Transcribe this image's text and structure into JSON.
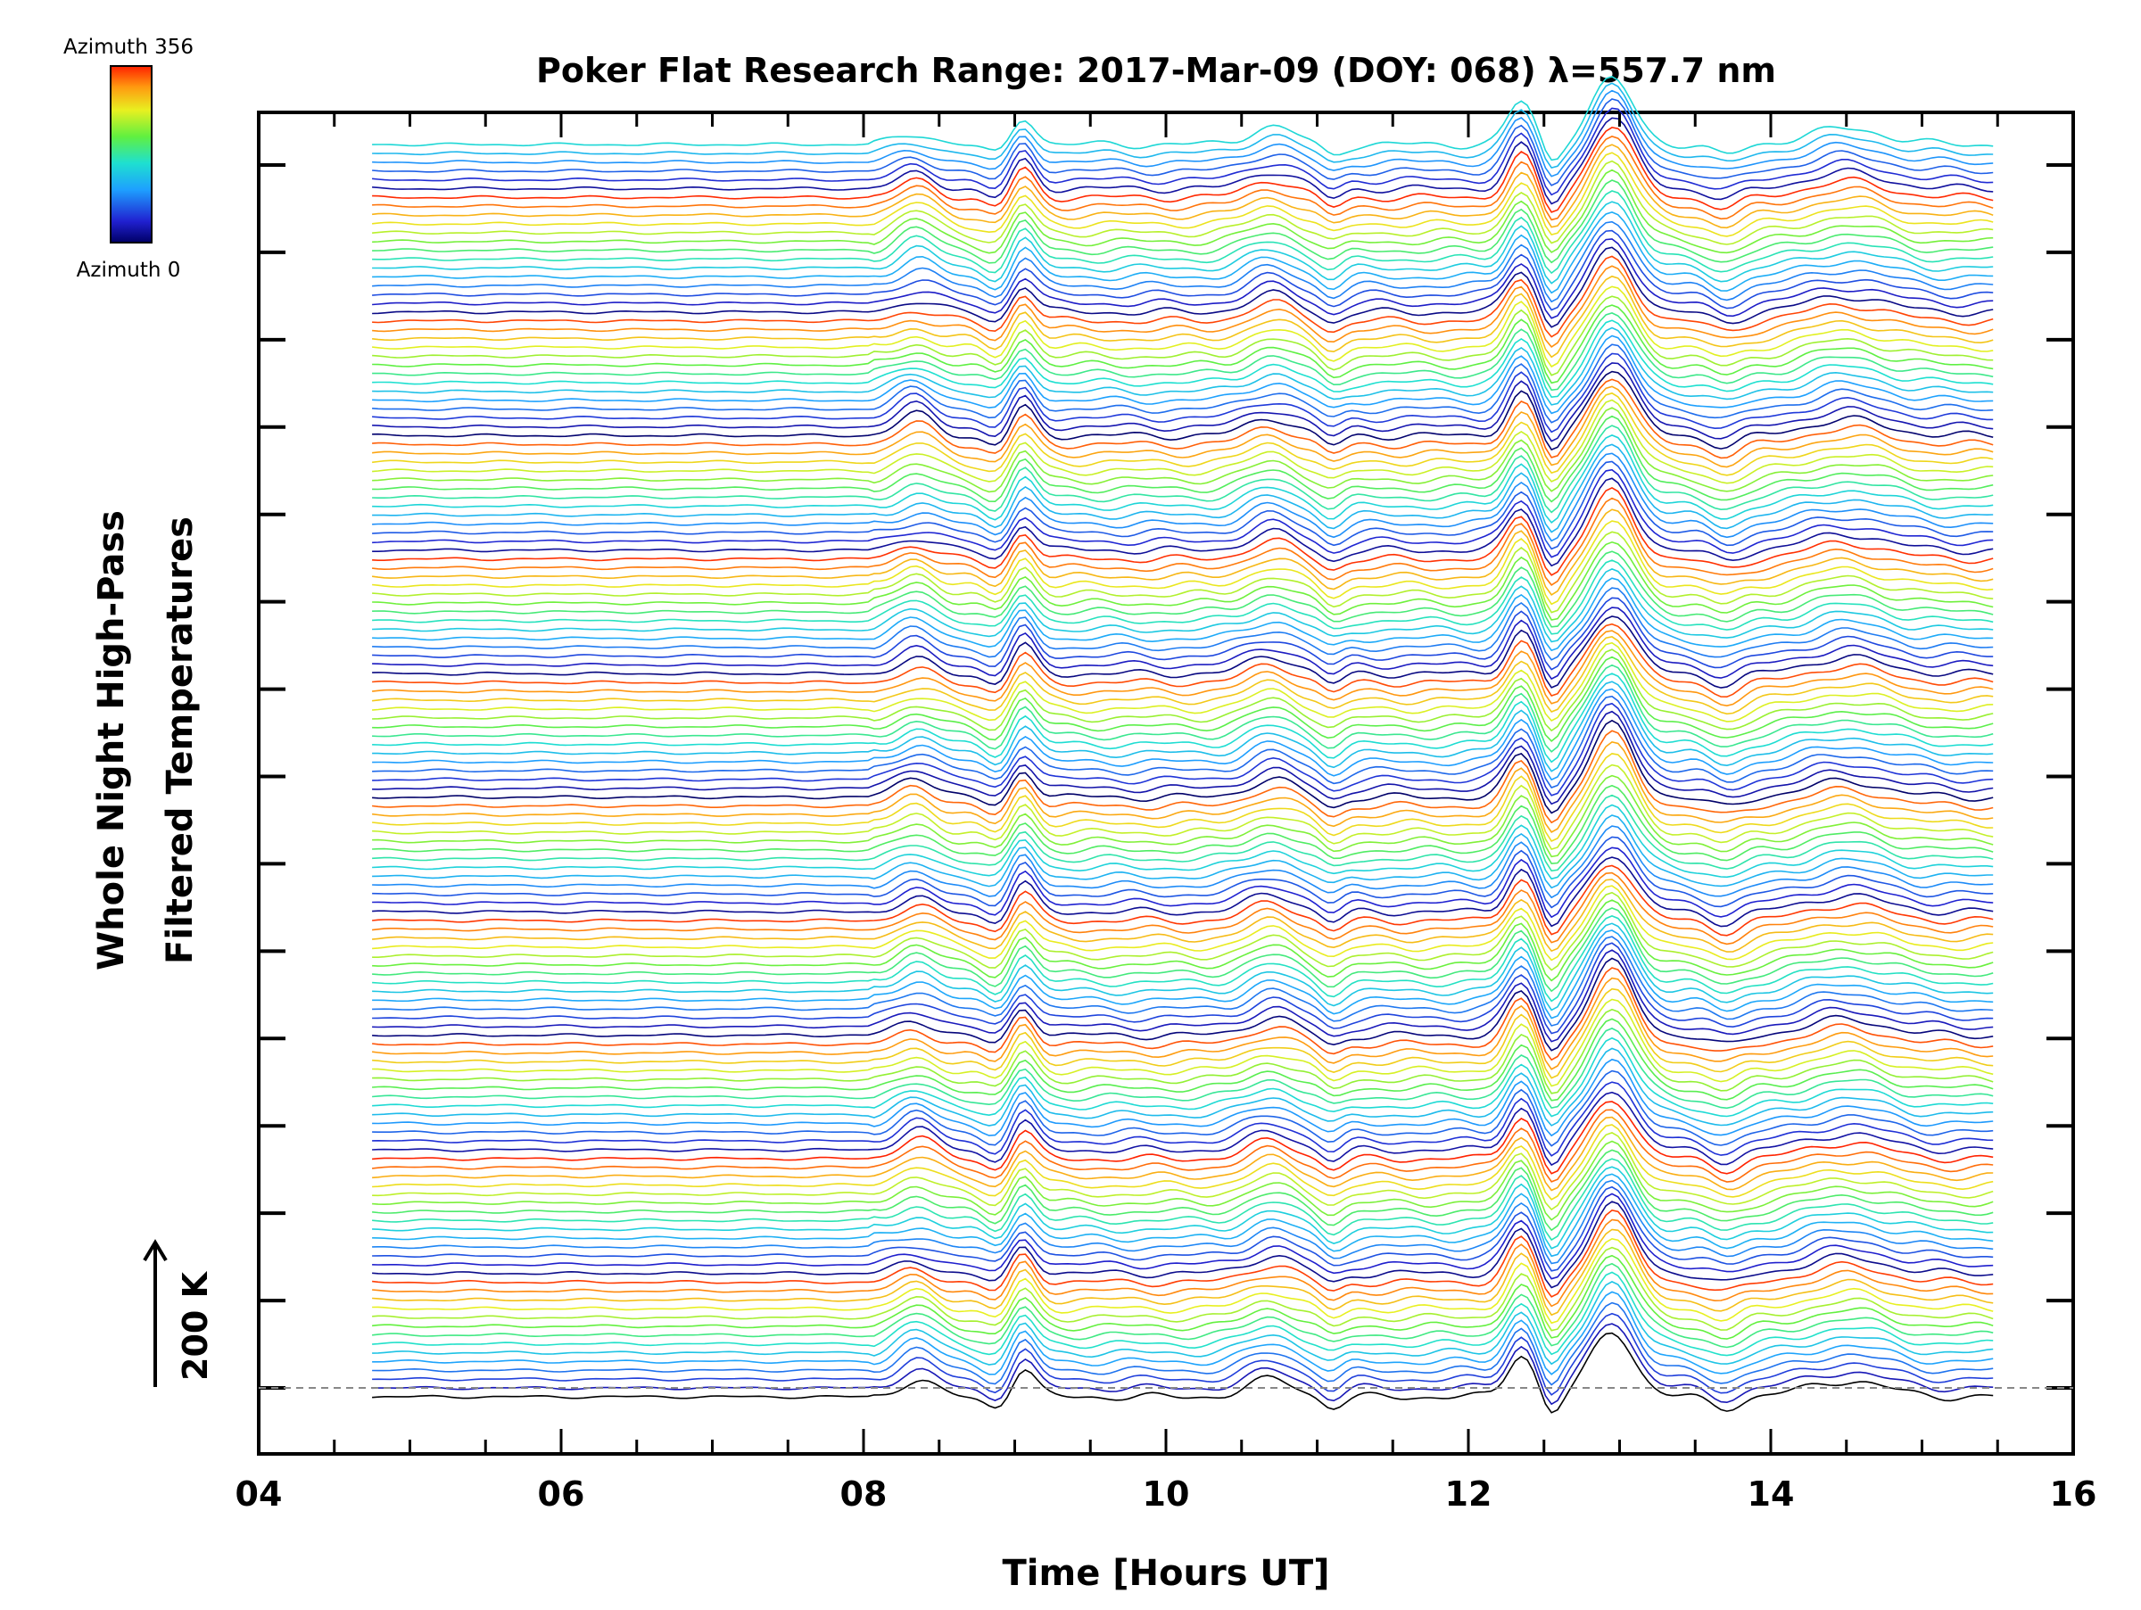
{
  "chart_data": {
    "type": "line",
    "title": "Poker Flat Research Range: 2017-Mar-09 (DOY: 068) λ=557.7 nm",
    "xlabel": "Time [Hours UT]",
    "ylabel_line1": "Whole Night High-Pass",
    "ylabel_line2": "Filtered Temperatures",
    "x_ticks": [
      "04",
      "06",
      "08",
      "10",
      "12",
      "14",
      "16"
    ],
    "xlim": [
      4,
      16
    ],
    "data_range": [
      4.75,
      15.5
    ],
    "stacked_traces": 143,
    "scale_bar_label": "200 K",
    "colorbar": {
      "top_label": "Azimuth 356",
      "bottom_label": "Azimuth 0",
      "colormap": "rainbow",
      "azimuth_range": [
        0,
        356
      ]
    },
    "baseline": "dashed",
    "features": {
      "bump_centers_ut": [
        8.35,
        9.05,
        10.7,
        12.35,
        12.95,
        14.5
      ],
      "notch_centers_ut": [
        11.1,
        12.5,
        13.7
      ]
    }
  }
}
